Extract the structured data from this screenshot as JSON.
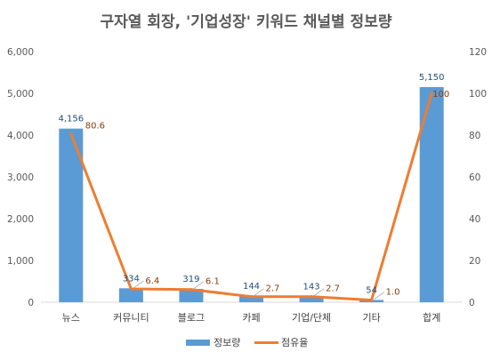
{
  "chart_data": {
    "type": "bar",
    "title": "구자열 회장, '기업성장' 키워드 채널별 정보량",
    "categories": [
      "뉴스",
      "커뮤니티",
      "블로그",
      "카페",
      "기업/단체",
      "기타",
      "합계"
    ],
    "series": [
      {
        "name": "정보량",
        "type": "bar",
        "axis": "left",
        "values": [
          4156,
          334,
          319,
          144,
          143,
          54,
          5150
        ],
        "labels": [
          "4,156",
          "334",
          "319",
          "144",
          "143",
          "54",
          "5,150"
        ],
        "color": "#5b9bd5"
      },
      {
        "name": "점유율",
        "type": "line",
        "axis": "right",
        "values": [
          80.6,
          6.4,
          6.1,
          2.7,
          2.7,
          1.0,
          100
        ],
        "labels": [
          "80.6",
          "6.4",
          "6.1",
          "2.7",
          "2.7",
          "1.0",
          "100"
        ],
        "color": "#ed7d31"
      }
    ],
    "y_left": {
      "min": 0,
      "max": 6000,
      "ticks": [
        "0",
        "1,000",
        "2,000",
        "3,000",
        "4,000",
        "5,000",
        "6,000"
      ]
    },
    "y_right": {
      "min": 0,
      "max": 120,
      "ticks": [
        "0",
        "20",
        "40",
        "60",
        "80",
        "100",
        "120"
      ]
    },
    "grid": false,
    "legend_position": "bottom"
  }
}
